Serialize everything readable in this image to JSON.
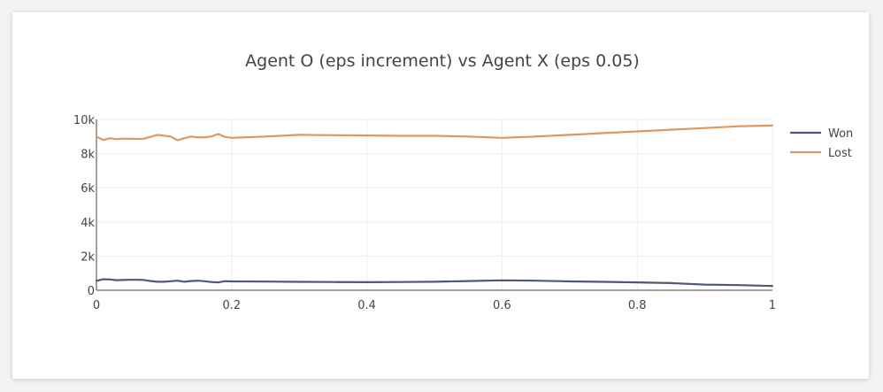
{
  "chart_data": {
    "type": "line",
    "title": "Agent O (eps increment) vs Agent X (eps 0.05)",
    "xlabel": "",
    "ylabel": "",
    "xlim": [
      0,
      1
    ],
    "ylim": [
      0,
      10000
    ],
    "x_ticks": [
      {
        "value": 0,
        "label": "0"
      },
      {
        "value": 0.2,
        "label": "0.2"
      },
      {
        "value": 0.4,
        "label": "0.4"
      },
      {
        "value": 0.6,
        "label": "0.6"
      },
      {
        "value": 0.8,
        "label": "0.8"
      },
      {
        "value": 1,
        "label": "1"
      }
    ],
    "y_ticks": [
      {
        "value": 0,
        "label": "0"
      },
      {
        "value": 2000,
        "label": "2k"
      },
      {
        "value": 4000,
        "label": "4k"
      },
      {
        "value": 6000,
        "label": "6k"
      },
      {
        "value": 8000,
        "label": "8k"
      },
      {
        "value": 10000,
        "label": "10k"
      }
    ],
    "grid": true,
    "legend_position": "top-right",
    "series": [
      {
        "name": "Won",
        "color": "#4d5a72",
        "x": [
          0,
          0.01,
          0.02,
          0.03,
          0.04,
          0.05,
          0.06,
          0.07,
          0.08,
          0.09,
          0.1,
          0.11,
          0.12,
          0.13,
          0.14,
          0.15,
          0.16,
          0.17,
          0.18,
          0.19,
          0.2,
          0.25,
          0.3,
          0.35,
          0.4,
          0.45,
          0.5,
          0.55,
          0.6,
          0.65,
          0.7,
          0.75,
          0.8,
          0.85,
          0.9,
          0.95,
          1
        ],
        "y": [
          550,
          640,
          630,
          590,
          600,
          610,
          610,
          600,
          540,
          500,
          500,
          530,
          560,
          500,
          540,
          560,
          530,
          480,
          460,
          530,
          520,
          510,
          490,
          480,
          470,
          480,
          500,
          540,
          580,
          560,
          520,
          490,
          460,
          420,
          330,
          300,
          250
        ]
      },
      {
        "name": "Lost",
        "color": "#e0965c",
        "x": [
          0,
          0.01,
          0.02,
          0.03,
          0.04,
          0.05,
          0.06,
          0.07,
          0.08,
          0.09,
          0.1,
          0.11,
          0.12,
          0.13,
          0.14,
          0.15,
          0.16,
          0.17,
          0.18,
          0.19,
          0.2,
          0.25,
          0.3,
          0.35,
          0.4,
          0.45,
          0.5,
          0.55,
          0.6,
          0.65,
          0.7,
          0.75,
          0.8,
          0.85,
          0.9,
          0.95,
          1
        ],
        "y": [
          9000,
          8800,
          8900,
          8850,
          8880,
          8870,
          8860,
          8870,
          8980,
          9100,
          9050,
          9000,
          8780,
          8900,
          9000,
          8950,
          8960,
          9000,
          9150,
          8980,
          8920,
          9000,
          9100,
          9080,
          9060,
          9040,
          9040,
          9000,
          8920,
          9000,
          9100,
          9200,
          9300,
          9400,
          9500,
          9600,
          9650
        ]
      }
    ]
  }
}
